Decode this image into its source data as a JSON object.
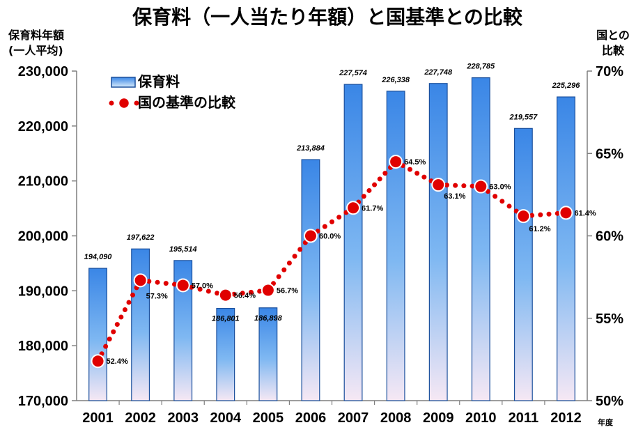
{
  "title": "保育料（一人当たり年額）と国基準との比較",
  "chart_data": {
    "type": "bar",
    "title": "保育料（一人当たり年額）と国基準との比較",
    "ylabel_left_line1": "保育料年額",
    "ylabel_left_line2": "(一人平均)",
    "ylabel_right_line1": "国との",
    "ylabel_right_line2": "比較",
    "xlabel": "年度",
    "categories": [
      "2001",
      "2002",
      "2003",
      "2004",
      "2005",
      "2006",
      "2007",
      "2008",
      "2009",
      "2010",
      "2011",
      "2012"
    ],
    "ylim": [
      170000,
      230000
    ],
    "y2lim": [
      50,
      70
    ],
    "yticks": [
      "170,000",
      "180,000",
      "190,000",
      "200,000",
      "210,000",
      "220,000",
      "230,000"
    ],
    "yticks_values": [
      170000,
      180000,
      190000,
      200000,
      210000,
      220000,
      230000
    ],
    "y2ticks": [
      "50%",
      "55%",
      "60%",
      "65%",
      "70%"
    ],
    "y2ticks_values": [
      50,
      55,
      60,
      65,
      70
    ],
    "series": [
      {
        "name": "保育料",
        "kind": "bar",
        "values": [
          194090,
          197622,
          195514,
          186801,
          186898,
          213884,
          227574,
          226338,
          227748,
          228785,
          219557,
          225296
        ],
        "labels": [
          "194,090",
          "197,622",
          "195,514",
          "186,801",
          "186,898",
          "213,884",
          "227,574",
          "226,338",
          "227,748",
          "228,785",
          "219,557",
          "225,296"
        ]
      },
      {
        "name": "国の基準の比較",
        "kind": "line",
        "axis": "right",
        "values": [
          52.4,
          57.3,
          57.0,
          56.4,
          56.7,
          60.0,
          61.7,
          64.5,
          63.1,
          63.0,
          61.2,
          61.4
        ],
        "labels": [
          "52.4%",
          "57.3%",
          "57.0%",
          "56.4%",
          "56.7%",
          "60.0%",
          "61.7%",
          "64.5%",
          "63.1%",
          "63.0%",
          "61.2%",
          "61.4%"
        ]
      }
    ],
    "legend": {
      "placement": "top-left",
      "bar_label": "保育料",
      "line_label": "国の基準の比較"
    },
    "grid": false,
    "colors": {
      "bar_top": "#3a86e6",
      "bar_bottom": "#f6e8f4",
      "bar_border": "#1a4f9c",
      "line": "#e00000",
      "marker_stroke": "#ffffff"
    }
  }
}
